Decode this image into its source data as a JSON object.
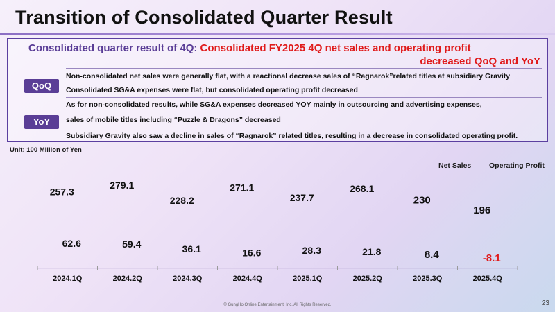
{
  "slide": {
    "title": "Transition of Consolidated Quarter Result",
    "page_number": "23",
    "footer": "© GungHo Online Entertainment, Inc. All Rights Reserved."
  },
  "summary": {
    "lead": "Consolidated quarter result of 4Q: ",
    "headline_1": "Consolidated FY2025 4Q net sales and operating profit",
    "headline_2": "decreased QoQ and YoY",
    "qoq": {
      "badge": "QoQ",
      "lines": [
        "Non-consolidated net sales were generally flat, with a reactional decrease sales of “Ragnarok”related titles at subsidiary Gravity",
        "Consolidated SG&A expenses were flat, but consolidated operating profit decreased"
      ]
    },
    "yoy": {
      "badge": "YoY",
      "lines": [
        "As for non-consolidated results, while SG&A expenses decreased YOY mainly in outsourcing and advertising expenses,",
        "sales of mobile titles including “Puzzle & Dragons” decreased",
        "Subsidiary Gravity also saw a decline in sales of “Ragnarok” related titles, resulting in a decrease in consolidated operating profit."
      ]
    }
  },
  "colors": {
    "accent": "#5a3e96",
    "negative": "#e01b1b",
    "text": "#1a1a1a"
  },
  "chart_data": {
    "type": "bar",
    "unit_label": "Unit: 100 Million of Yen",
    "categories": [
      "2024.1Q",
      "2024.2Q",
      "2024.3Q",
      "2024.4Q",
      "2025.1Q",
      "2025.2Q",
      "2025.3Q",
      "2025.4Q"
    ],
    "series": [
      {
        "name": "Net Sales",
        "values": [
          257.3,
          279.1,
          228.2,
          271.1,
          237.7,
          268.1,
          230,
          196
        ]
      },
      {
        "name": "Operating Profit",
        "values": [
          62.6,
          59.4,
          36.1,
          16.6,
          28.3,
          21.8,
          8.4,
          -8.1
        ]
      }
    ],
    "value_labels": {
      "Net Sales": [
        "257.3",
        "279.1",
        "228.2",
        "271.1",
        "237.7",
        "268.1",
        "230",
        "196"
      ],
      "Operating Profit": [
        "62.6",
        "59.4",
        "36.1",
        "16.6",
        "28.3",
        "21.8",
        "8.4",
        "-8.1"
      ]
    },
    "emphasized_labels": {
      "Net Sales": [
        6,
        7
      ],
      "Operating Profit": [
        6,
        7
      ]
    },
    "ylim": [
      -10,
      290
    ],
    "legend_position": "top-right",
    "grid": false
  }
}
